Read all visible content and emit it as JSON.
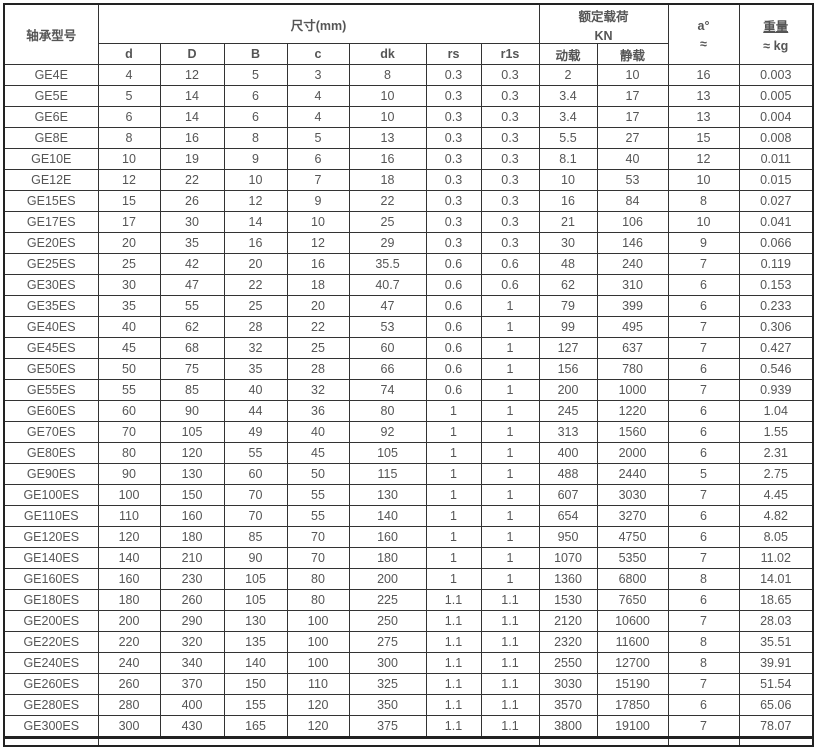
{
  "header": {
    "model": "轴承型号",
    "dimensions": "尺寸(mm)",
    "rated_load": "额定载荷",
    "rated_load_unit": "KN",
    "angle": "a°",
    "angle_approx": "≈",
    "weight": "重量",
    "weight_unit": "≈ kg",
    "sub": [
      "d",
      "D",
      "B",
      "c",
      "dk",
      "rs",
      "r1s",
      "动载",
      "静载"
    ]
  },
  "rows": [
    [
      "GE4E",
      "4",
      "12",
      "5",
      "3",
      "8",
      "0.3",
      "0.3",
      "2",
      "10",
      "16",
      "0.003"
    ],
    [
      "GE5E",
      "5",
      "14",
      "6",
      "4",
      "10",
      "0.3",
      "0.3",
      "3.4",
      "17",
      "13",
      "0.005"
    ],
    [
      "GE6E",
      "6",
      "14",
      "6",
      "4",
      "10",
      "0.3",
      "0.3",
      "3.4",
      "17",
      "13",
      "0.004"
    ],
    [
      "GE8E",
      "8",
      "16",
      "8",
      "5",
      "13",
      "0.3",
      "0.3",
      "5.5",
      "27",
      "15",
      "0.008"
    ],
    [
      "GE10E",
      "10",
      "19",
      "9",
      "6",
      "16",
      "0.3",
      "0.3",
      "8.1",
      "40",
      "12",
      "0.011"
    ],
    [
      "GE12E",
      "12",
      "22",
      "10",
      "7",
      "18",
      "0.3",
      "0.3",
      "10",
      "53",
      "10",
      "0.015"
    ],
    [
      "GE15ES",
      "15",
      "26",
      "12",
      "9",
      "22",
      "0.3",
      "0.3",
      "16",
      "84",
      "8",
      "0.027"
    ],
    [
      "GE17ES",
      "17",
      "30",
      "14",
      "10",
      "25",
      "0.3",
      "0.3",
      "21",
      "106",
      "10",
      "0.041"
    ],
    [
      "GE20ES",
      "20",
      "35",
      "16",
      "12",
      "29",
      "0.3",
      "0.3",
      "30",
      "146",
      "9",
      "0.066"
    ],
    [
      "GE25ES",
      "25",
      "42",
      "20",
      "16",
      "35.5",
      "0.6",
      "0.6",
      "48",
      "240",
      "7",
      "0.119"
    ],
    [
      "GE30ES",
      "30",
      "47",
      "22",
      "18",
      "40.7",
      "0.6",
      "0.6",
      "62",
      "310",
      "6",
      "0.153"
    ],
    [
      "GE35ES",
      "35",
      "55",
      "25",
      "20",
      "47",
      "0.6",
      "1",
      "79",
      "399",
      "6",
      "0.233"
    ],
    [
      "GE40ES",
      "40",
      "62",
      "28",
      "22",
      "53",
      "0.6",
      "1",
      "99",
      "495",
      "7",
      "0.306"
    ],
    [
      "GE45ES",
      "45",
      "68",
      "32",
      "25",
      "60",
      "0.6",
      "1",
      "127",
      "637",
      "7",
      "0.427"
    ],
    [
      "GE50ES",
      "50",
      "75",
      "35",
      "28",
      "66",
      "0.6",
      "1",
      "156",
      "780",
      "6",
      "0.546"
    ],
    [
      "GE55ES",
      "55",
      "85",
      "40",
      "32",
      "74",
      "0.6",
      "1",
      "200",
      "1000",
      "7",
      "0.939"
    ],
    [
      "GE60ES",
      "60",
      "90",
      "44",
      "36",
      "80",
      "1",
      "1",
      "245",
      "1220",
      "6",
      "1.04"
    ],
    [
      "GE70ES",
      "70",
      "105",
      "49",
      "40",
      "92",
      "1",
      "1",
      "313",
      "1560",
      "6",
      "1.55"
    ],
    [
      "GE80ES",
      "80",
      "120",
      "55",
      "45",
      "105",
      "1",
      "1",
      "400",
      "2000",
      "6",
      "2.31"
    ],
    [
      "GE90ES",
      "90",
      "130",
      "60",
      "50",
      "115",
      "1",
      "1",
      "488",
      "2440",
      "5",
      "2.75"
    ],
    [
      "GE100ES",
      "100",
      "150",
      "70",
      "55",
      "130",
      "1",
      "1",
      "607",
      "3030",
      "7",
      "4.45"
    ],
    [
      "GE110ES",
      "110",
      "160",
      "70",
      "55",
      "140",
      "1",
      "1",
      "654",
      "3270",
      "6",
      "4.82"
    ],
    [
      "GE120ES",
      "120",
      "180",
      "85",
      "70",
      "160",
      "1",
      "1",
      "950",
      "4750",
      "6",
      "8.05"
    ],
    [
      "GE140ES",
      "140",
      "210",
      "90",
      "70",
      "180",
      "1",
      "1",
      "1070",
      "5350",
      "7",
      "11.02"
    ],
    [
      "GE160ES",
      "160",
      "230",
      "105",
      "80",
      "200",
      "1",
      "1",
      "1360",
      "6800",
      "8",
      "14.01"
    ],
    [
      "GE180ES",
      "180",
      "260",
      "105",
      "80",
      "225",
      "1.1",
      "1.1",
      "1530",
      "7650",
      "6",
      "18.65"
    ],
    [
      "GE200ES",
      "200",
      "290",
      "130",
      "100",
      "250",
      "1.1",
      "1.1",
      "2120",
      "10600",
      "7",
      "28.03"
    ],
    [
      "GE220ES",
      "220",
      "320",
      "135",
      "100",
      "275",
      "1.1",
      "1.1",
      "2320",
      "11600",
      "8",
      "35.51"
    ],
    [
      "GE240ES",
      "240",
      "340",
      "140",
      "100",
      "300",
      "1.1",
      "1.1",
      "2550",
      "12700",
      "8",
      "39.91"
    ],
    [
      "GE260ES",
      "260",
      "370",
      "150",
      "110",
      "325",
      "1.1",
      "1.1",
      "3030",
      "15190",
      "7",
      "51.54"
    ],
    [
      "GE280ES",
      "280",
      "400",
      "155",
      "120",
      "350",
      "1.1",
      "1.1",
      "3570",
      "17850",
      "6",
      "65.06"
    ],
    [
      "GE300ES",
      "300",
      "430",
      "165",
      "120",
      "375",
      "1.1",
      "1.1",
      "3800",
      "19100",
      "7",
      "78.07"
    ]
  ]
}
